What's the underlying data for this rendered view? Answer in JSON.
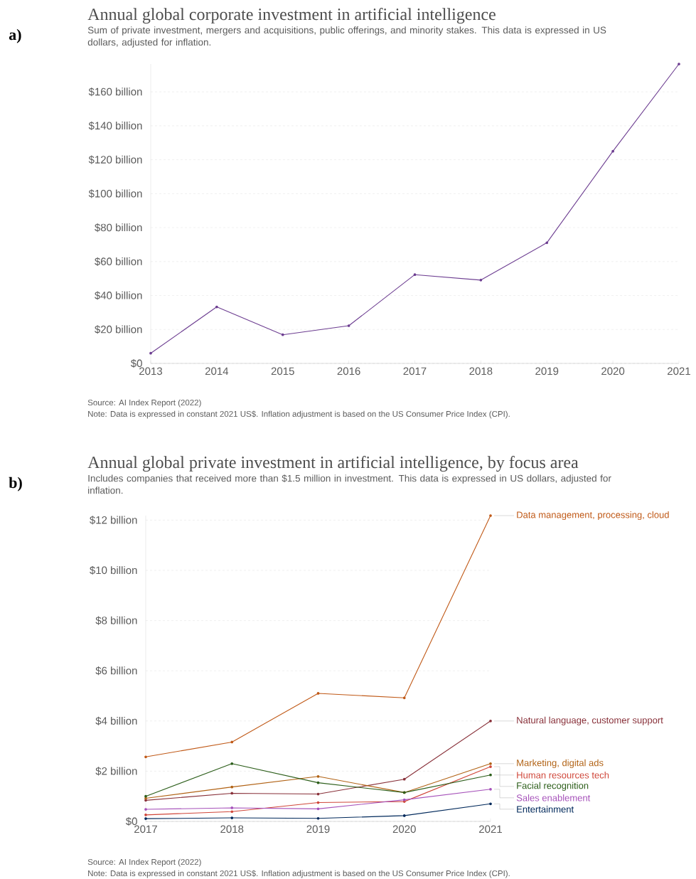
{
  "chart_data": [
    {
      "type": "line",
      "title": "Annual global corporate investment in artificial intelligence",
      "subtitle": "Sum of private investment, mergers and acquisitions, public offerings, and minority stakes. This data is expressed in US dollars, adjusted for inflation.",
      "annotations": [
        "a)",
        "Source: AI Index Report (2022)",
        "Note: Data is expressed in constant 2021 US$. Inflation adjustment is based on the US Consumer Price Index (CPI)."
      ],
      "x": [
        2013,
        2014,
        2015,
        2016,
        2017,
        2018,
        2019,
        2020,
        2021
      ],
      "series": [
        {
          "color": "#6d3e91",
          "values": [
            6.0,
            33.3,
            16.9,
            22.2,
            52.3,
            49.1,
            71.1,
            125,
            176.4
          ]
        }
      ],
      "xlim": [
        2013,
        2021
      ],
      "xticks": [
        2013,
        2014,
        2015,
        2016,
        2017,
        2018,
        2019,
        2020,
        2021
      ],
      "ylim": [
        0,
        176.4
      ],
      "yticks": [
        {
          "value": 0,
          "label": "$0"
        },
        {
          "value": 20,
          "label": "$20 billion"
        },
        {
          "value": 40,
          "label": "$40 billion"
        },
        {
          "value": 60,
          "label": "$60 billion"
        },
        {
          "value": 80,
          "label": "$80 billion"
        },
        {
          "value": 100,
          "label": "$100 billion"
        },
        {
          "value": 120,
          "label": "$120 billion"
        },
        {
          "value": 140,
          "label": "$140 billion"
        },
        {
          "value": 160,
          "label": "$160 billion"
        }
      ],
      "grid": "y",
      "marker": "circle"
    },
    {
      "type": "line",
      "title": "Annual global private investment in artificial intelligence, by focus area",
      "subtitle": "Includes companies that received more than $1.5 million in investment. This data is expressed in US dollars, adjusted for inflation.",
      "annotations": [
        "b)",
        "Source: AI Index Report (2022)",
        "Note: Data is expressed in constant 2021 US$. Inflation adjustment is based on the US Consumer Price Index (CPI)."
      ],
      "x": [
        2017,
        2018,
        2019,
        2020,
        2021
      ],
      "series": [
        {
          "name": "Data management, processing, cloud",
          "color": "#c05917",
          "values": [
            2.57,
            3.16,
            5.1,
            4.92,
            12.18
          ]
        },
        {
          "name": "Natural language, customer support",
          "color": "#883039",
          "values": [
            0.84,
            1.12,
            1.09,
            1.68,
            4.0
          ]
        },
        {
          "name": "Marketing, digital ads",
          "color": "#b16214",
          "values": [
            0.92,
            1.37,
            1.79,
            1.15,
            2.3
          ]
        },
        {
          "name": "Human resources tech",
          "color": "#d0473a",
          "values": [
            0.26,
            0.39,
            0.75,
            0.79,
            2.18
          ]
        },
        {
          "name": "Facial recognition",
          "color": "#2c5e1a",
          "values": [
            1.0,
            2.3,
            1.54,
            1.15,
            1.85
          ]
        },
        {
          "name": "Sales enablement",
          "color": "#a652ba",
          "values": [
            0.48,
            0.54,
            0.5,
            0.86,
            1.28
          ]
        },
        {
          "name": "Entertainment",
          "color": "#00295b",
          "values": [
            0.11,
            0.14,
            0.12,
            0.23,
            0.7
          ]
        }
      ],
      "xlim": [
        2017,
        2021
      ],
      "xticks": [
        2017,
        2018,
        2019,
        2020,
        2021
      ],
      "ylim": [
        0,
        12.18
      ],
      "yticks": [
        {
          "value": 0,
          "label": "$0"
        },
        {
          "value": 2,
          "label": "$2 billion"
        },
        {
          "value": 4,
          "label": "$4 billion"
        },
        {
          "value": 6,
          "label": "$6 billion"
        },
        {
          "value": 8,
          "label": "$8 billion"
        },
        {
          "value": 10,
          "label": "$10 billion"
        },
        {
          "value": 12,
          "label": "$12 billion"
        }
      ],
      "grid": "y",
      "marker": "circle",
      "legend": "right"
    }
  ]
}
